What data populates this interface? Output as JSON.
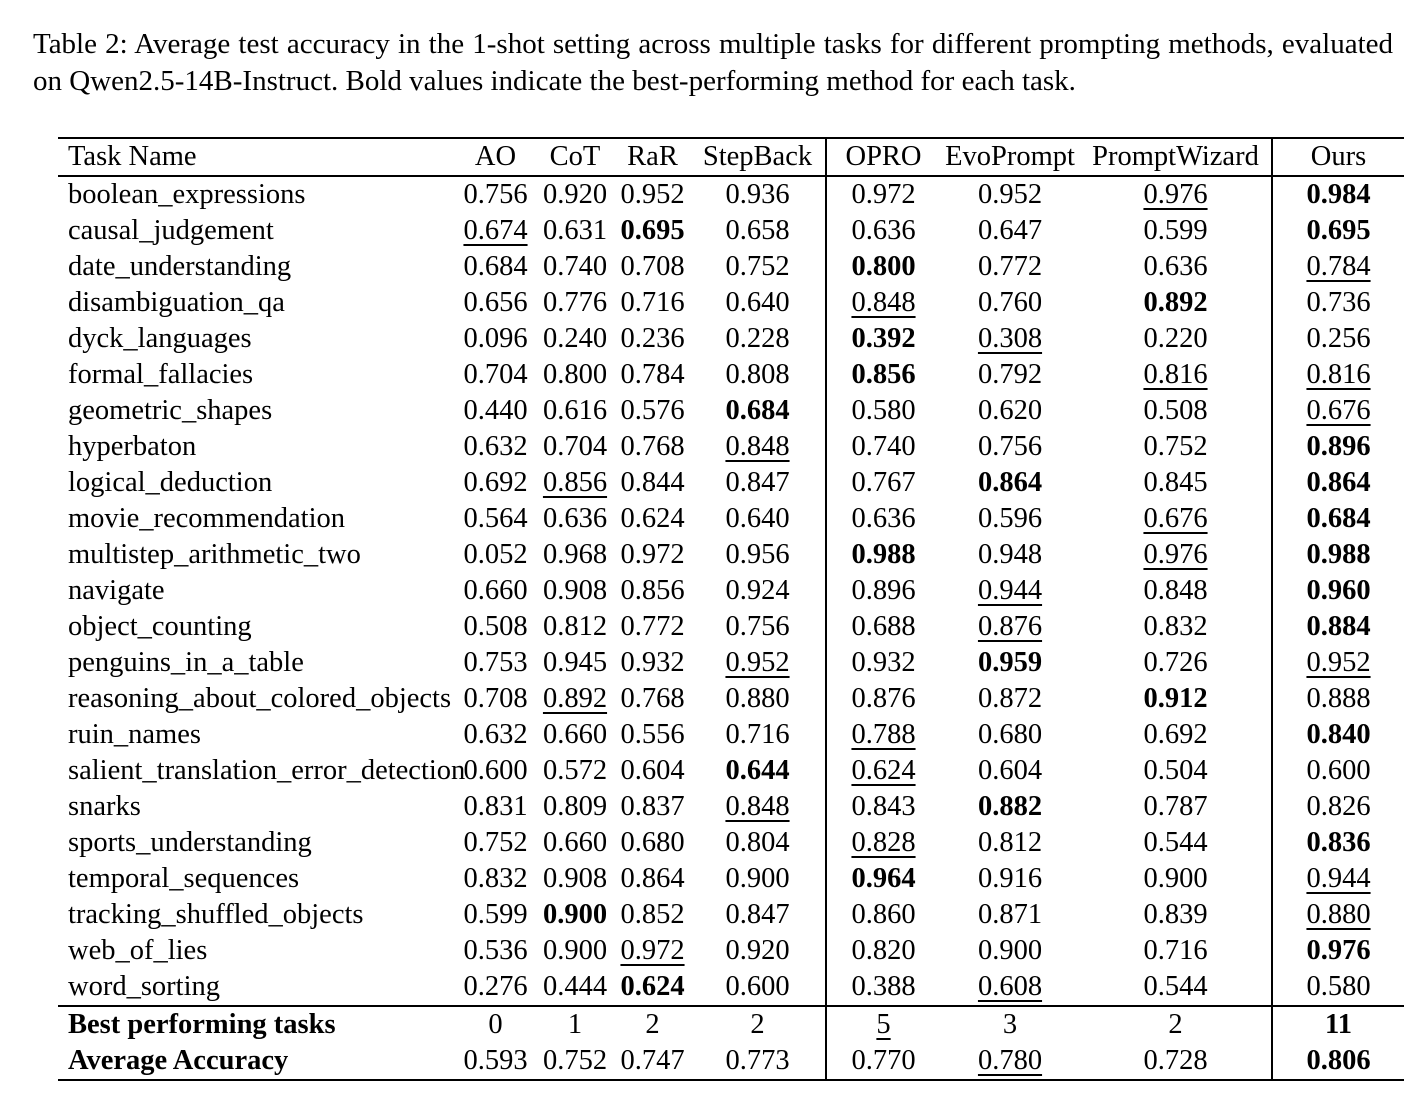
{
  "caption": {
    "label": "Table 2:",
    "text": "Average test accuracy in the 1-shot setting across multiple tasks for different prompting methods, evaluated on Qwen2.5-14B-Instruct. Bold values indicate the best-performing method for each task."
  },
  "colors": {
    "text": "#000000",
    "background": "#ffffff",
    "rule": "#000000"
  },
  "table": {
    "columns": [
      "Task Name",
      "AO",
      "CoT",
      "RaR",
      "StepBack",
      "OPRO",
      "EvoPrompt",
      "PromptWizard",
      "Ours"
    ],
    "style_legend": {
      "b": "bold (best-performing)",
      "u": "underlined (second-best)"
    },
    "rows": [
      {
        "task": "boolean_expressions",
        "cells": [
          [
            "0.756",
            ""
          ],
          [
            "0.920",
            ""
          ],
          [
            "0.952",
            ""
          ],
          [
            "0.936",
            ""
          ],
          [
            "0.972",
            ""
          ],
          [
            "0.952",
            ""
          ],
          [
            "0.976",
            "u"
          ],
          [
            "0.984",
            "b"
          ]
        ]
      },
      {
        "task": "causal_judgement",
        "cells": [
          [
            "0.674",
            "u"
          ],
          [
            "0.631",
            ""
          ],
          [
            "0.695",
            "b"
          ],
          [
            "0.658",
            ""
          ],
          [
            "0.636",
            ""
          ],
          [
            "0.647",
            ""
          ],
          [
            "0.599",
            ""
          ],
          [
            "0.695",
            "b"
          ]
        ]
      },
      {
        "task": "date_understanding",
        "cells": [
          [
            "0.684",
            ""
          ],
          [
            "0.740",
            ""
          ],
          [
            "0.708",
            ""
          ],
          [
            "0.752",
            ""
          ],
          [
            "0.800",
            "b"
          ],
          [
            "0.772",
            ""
          ],
          [
            "0.636",
            ""
          ],
          [
            "0.784",
            "u"
          ]
        ]
      },
      {
        "task": "disambiguation_qa",
        "cells": [
          [
            "0.656",
            ""
          ],
          [
            "0.776",
            ""
          ],
          [
            "0.716",
            ""
          ],
          [
            "0.640",
            ""
          ],
          [
            "0.848",
            "u"
          ],
          [
            "0.760",
            ""
          ],
          [
            "0.892",
            "b"
          ],
          [
            "0.736",
            ""
          ]
        ]
      },
      {
        "task": "dyck_languages",
        "cells": [
          [
            "0.096",
            ""
          ],
          [
            "0.240",
            ""
          ],
          [
            "0.236",
            ""
          ],
          [
            "0.228",
            ""
          ],
          [
            "0.392",
            "b"
          ],
          [
            "0.308",
            "u"
          ],
          [
            "0.220",
            ""
          ],
          [
            "0.256",
            ""
          ]
        ]
      },
      {
        "task": "formal_fallacies",
        "cells": [
          [
            "0.704",
            ""
          ],
          [
            "0.800",
            ""
          ],
          [
            "0.784",
            ""
          ],
          [
            "0.808",
            ""
          ],
          [
            "0.856",
            "b"
          ],
          [
            "0.792",
            ""
          ],
          [
            "0.816",
            "u"
          ],
          [
            "0.816",
            "u"
          ]
        ]
      },
      {
        "task": "geometric_shapes",
        "cells": [
          [
            "0.440",
            ""
          ],
          [
            "0.616",
            ""
          ],
          [
            "0.576",
            ""
          ],
          [
            "0.684",
            "b"
          ],
          [
            "0.580",
            ""
          ],
          [
            "0.620",
            ""
          ],
          [
            "0.508",
            ""
          ],
          [
            "0.676",
            "u"
          ]
        ]
      },
      {
        "task": "hyperbaton",
        "cells": [
          [
            "0.632",
            ""
          ],
          [
            "0.704",
            ""
          ],
          [
            "0.768",
            ""
          ],
          [
            "0.848",
            "u"
          ],
          [
            "0.740",
            ""
          ],
          [
            "0.756",
            ""
          ],
          [
            "0.752",
            ""
          ],
          [
            "0.896",
            "b"
          ]
        ]
      },
      {
        "task": "logical_deduction",
        "cells": [
          [
            "0.692",
            ""
          ],
          [
            "0.856",
            "u"
          ],
          [
            "0.844",
            ""
          ],
          [
            "0.847",
            ""
          ],
          [
            "0.767",
            ""
          ],
          [
            "0.864",
            "b"
          ],
          [
            "0.845",
            ""
          ],
          [
            "0.864",
            "b"
          ]
        ]
      },
      {
        "task": "movie_recommendation",
        "cells": [
          [
            "0.564",
            ""
          ],
          [
            "0.636",
            ""
          ],
          [
            "0.624",
            ""
          ],
          [
            "0.640",
            ""
          ],
          [
            "0.636",
            ""
          ],
          [
            "0.596",
            ""
          ],
          [
            "0.676",
            "u"
          ],
          [
            "0.684",
            "b"
          ]
        ]
      },
      {
        "task": "multistep_arithmetic_two",
        "cells": [
          [
            "0.052",
            ""
          ],
          [
            "0.968",
            ""
          ],
          [
            "0.972",
            ""
          ],
          [
            "0.956",
            ""
          ],
          [
            "0.988",
            "b"
          ],
          [
            "0.948",
            ""
          ],
          [
            "0.976",
            "u"
          ],
          [
            "0.988",
            "b"
          ]
        ]
      },
      {
        "task": "navigate",
        "cells": [
          [
            "0.660",
            ""
          ],
          [
            "0.908",
            ""
          ],
          [
            "0.856",
            ""
          ],
          [
            "0.924",
            ""
          ],
          [
            "0.896",
            ""
          ],
          [
            "0.944",
            "u"
          ],
          [
            "0.848",
            ""
          ],
          [
            "0.960",
            "b"
          ]
        ]
      },
      {
        "task": "object_counting",
        "cells": [
          [
            "0.508",
            ""
          ],
          [
            "0.812",
            ""
          ],
          [
            "0.772",
            ""
          ],
          [
            "0.756",
            ""
          ],
          [
            "0.688",
            ""
          ],
          [
            "0.876",
            "u"
          ],
          [
            "0.832",
            ""
          ],
          [
            "0.884",
            "b"
          ]
        ]
      },
      {
        "task": "penguins_in_a_table",
        "cells": [
          [
            "0.753",
            ""
          ],
          [
            "0.945",
            ""
          ],
          [
            "0.932",
            ""
          ],
          [
            "0.952",
            "u"
          ],
          [
            "0.932",
            ""
          ],
          [
            "0.959",
            "b"
          ],
          [
            "0.726",
            ""
          ],
          [
            "0.952",
            "u"
          ]
        ]
      },
      {
        "task": "reasoning_about_colored_objects",
        "cells": [
          [
            "0.708",
            ""
          ],
          [
            "0.892",
            "u"
          ],
          [
            "0.768",
            ""
          ],
          [
            "0.880",
            ""
          ],
          [
            "0.876",
            ""
          ],
          [
            "0.872",
            ""
          ],
          [
            "0.912",
            "b"
          ],
          [
            "0.888",
            ""
          ]
        ]
      },
      {
        "task": "ruin_names",
        "cells": [
          [
            "0.632",
            ""
          ],
          [
            "0.660",
            ""
          ],
          [
            "0.556",
            ""
          ],
          [
            "0.716",
            ""
          ],
          [
            "0.788",
            "u"
          ],
          [
            "0.680",
            ""
          ],
          [
            "0.692",
            ""
          ],
          [
            "0.840",
            "b"
          ]
        ]
      },
      {
        "task": "salient_translation_error_detection",
        "cells": [
          [
            "0.600",
            ""
          ],
          [
            "0.572",
            ""
          ],
          [
            "0.604",
            ""
          ],
          [
            "0.644",
            "b"
          ],
          [
            "0.624",
            "u"
          ],
          [
            "0.604",
            ""
          ],
          [
            "0.504",
            ""
          ],
          [
            "0.600",
            ""
          ]
        ]
      },
      {
        "task": "snarks",
        "cells": [
          [
            "0.831",
            ""
          ],
          [
            "0.809",
            ""
          ],
          [
            "0.837",
            ""
          ],
          [
            "0.848",
            "u"
          ],
          [
            "0.843",
            ""
          ],
          [
            "0.882",
            "b"
          ],
          [
            "0.787",
            ""
          ],
          [
            "0.826",
            ""
          ]
        ]
      },
      {
        "task": "sports_understanding",
        "cells": [
          [
            "0.752",
            ""
          ],
          [
            "0.660",
            ""
          ],
          [
            "0.680",
            ""
          ],
          [
            "0.804",
            ""
          ],
          [
            "0.828",
            "u"
          ],
          [
            "0.812",
            ""
          ],
          [
            "0.544",
            ""
          ],
          [
            "0.836",
            "b"
          ]
        ]
      },
      {
        "task": "temporal_sequences",
        "cells": [
          [
            "0.832",
            ""
          ],
          [
            "0.908",
            ""
          ],
          [
            "0.864",
            ""
          ],
          [
            "0.900",
            ""
          ],
          [
            "0.964",
            "b"
          ],
          [
            "0.916",
            ""
          ],
          [
            "0.900",
            ""
          ],
          [
            "0.944",
            "u"
          ]
        ]
      },
      {
        "task": "tracking_shuffled_objects",
        "cells": [
          [
            "0.599",
            ""
          ],
          [
            "0.900",
            "b"
          ],
          [
            "0.852",
            ""
          ],
          [
            "0.847",
            ""
          ],
          [
            "0.860",
            ""
          ],
          [
            "0.871",
            ""
          ],
          [
            "0.839",
            ""
          ],
          [
            "0.880",
            "u"
          ]
        ]
      },
      {
        "task": "web_of_lies",
        "cells": [
          [
            "0.536",
            ""
          ],
          [
            "0.900",
            ""
          ],
          [
            "0.972",
            "u"
          ],
          [
            "0.920",
            ""
          ],
          [
            "0.820",
            ""
          ],
          [
            "0.900",
            ""
          ],
          [
            "0.716",
            ""
          ],
          [
            "0.976",
            "b"
          ]
        ]
      },
      {
        "task": "word_sorting",
        "cells": [
          [
            "0.276",
            ""
          ],
          [
            "0.444",
            ""
          ],
          [
            "0.624",
            "b"
          ],
          [
            "0.600",
            ""
          ],
          [
            "0.388",
            ""
          ],
          [
            "0.608",
            "u"
          ],
          [
            "0.544",
            ""
          ],
          [
            "0.580",
            ""
          ]
        ]
      }
    ],
    "summary_rows": [
      {
        "task": "Best performing tasks",
        "cells": [
          [
            "0",
            ""
          ],
          [
            "1",
            ""
          ],
          [
            "2",
            ""
          ],
          [
            "2",
            ""
          ],
          [
            "5",
            "u"
          ],
          [
            "3",
            ""
          ],
          [
            "2",
            ""
          ],
          [
            "11",
            "b"
          ]
        ]
      },
      {
        "task": "Average Accuracy",
        "cells": [
          [
            "0.593",
            ""
          ],
          [
            "0.752",
            ""
          ],
          [
            "0.747",
            ""
          ],
          [
            "0.773",
            ""
          ],
          [
            "0.770",
            ""
          ],
          [
            "0.780",
            "u"
          ],
          [
            "0.728",
            ""
          ],
          [
            "0.806",
            "b"
          ]
        ]
      }
    ]
  }
}
